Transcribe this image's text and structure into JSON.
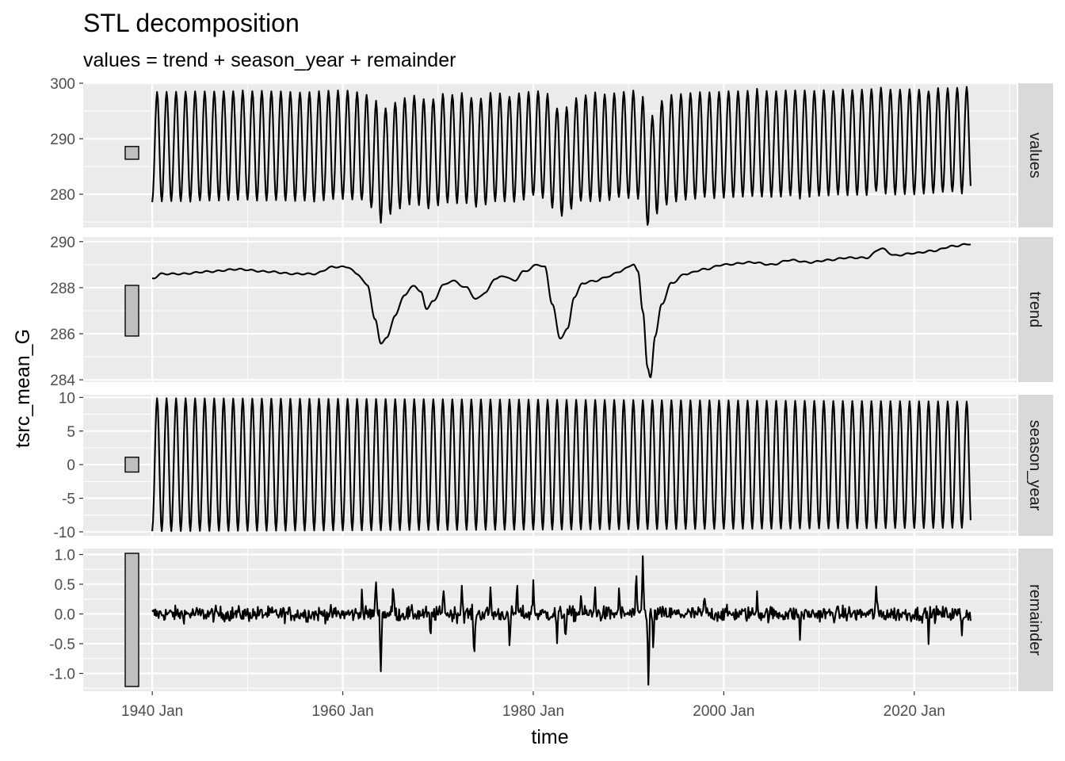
{
  "chart_data": {
    "type": "line",
    "title": "STL decomposition",
    "subtitle": "values = trend + season_year + remainder",
    "xlabel": "time",
    "ylabel": "tsrc_mean_G",
    "x_range": [
      "1940-01",
      "2025-12"
    ],
    "xlim": [
      "1932-10",
      "2030-10"
    ],
    "x_ticks": [
      "1940 Jan",
      "1960 Jan",
      "1980 Jan",
      "2000 Jan",
      "2020 Jan"
    ],
    "x_tick_years": [
      1940,
      1960,
      1980,
      2000,
      2020
    ],
    "grid": true,
    "line_color": "#000000",
    "panel_background": "#ebebeb",
    "strip_background": "#d9d9d9",
    "scale_bar_color": "#bfbfbf",
    "panels": [
      {
        "name": "values",
        "ylim": [
          274,
          300
        ],
        "y_ticks": [
          280,
          290,
          300
        ],
        "y_tick_labels": [
          "280",
          "290",
          "300"
        ],
        "scale_bar": [
          286.3,
          288.6
        ],
        "note": "values series is the sum of trend, season_year and remainder"
      },
      {
        "name": "trend",
        "ylim": [
          283.9,
          290.2
        ],
        "y_ticks": [
          284,
          286,
          288,
          290
        ],
        "y_tick_labels": [
          "284",
          "286",
          "288",
          "290"
        ],
        "scale_bar": [
          285.9,
          288.1
        ],
        "knots": [
          [
            1940.0,
            288.4
          ],
          [
            1941.0,
            288.6
          ],
          [
            1943.0,
            288.6
          ],
          [
            1946.0,
            288.7
          ],
          [
            1949.0,
            288.8
          ],
          [
            1952.0,
            288.7
          ],
          [
            1955.0,
            288.6
          ],
          [
            1957.0,
            288.6
          ],
          [
            1959.0,
            288.9
          ],
          [
            1960.5,
            288.9
          ],
          [
            1961.5,
            288.6
          ],
          [
            1962.6,
            288.1
          ],
          [
            1963.4,
            286.6
          ],
          [
            1964.0,
            285.6
          ],
          [
            1964.6,
            285.8
          ],
          [
            1965.5,
            286.8
          ],
          [
            1966.5,
            287.7
          ],
          [
            1967.5,
            288.1
          ],
          [
            1968.2,
            287.8
          ],
          [
            1968.8,
            287.1
          ],
          [
            1969.5,
            287.4
          ],
          [
            1970.5,
            288.1
          ],
          [
            1971.5,
            288.3
          ],
          [
            1973.0,
            288.0
          ],
          [
            1974.0,
            287.5
          ],
          [
            1975.0,
            287.8
          ],
          [
            1976.0,
            288.4
          ],
          [
            1977.0,
            288.5
          ],
          [
            1978.0,
            288.3
          ],
          [
            1979.0,
            288.7
          ],
          [
            1980.5,
            289.0
          ],
          [
            1981.2,
            288.9
          ],
          [
            1982.0,
            287.3
          ],
          [
            1982.8,
            285.8
          ],
          [
            1983.6,
            286.2
          ],
          [
            1984.3,
            287.6
          ],
          [
            1985.2,
            288.2
          ],
          [
            1986.5,
            288.3
          ],
          [
            1988.0,
            288.5
          ],
          [
            1989.0,
            288.7
          ],
          [
            1990.5,
            289.0
          ],
          [
            1991.0,
            288.7
          ],
          [
            1991.5,
            287.0
          ],
          [
            1992.0,
            284.5
          ],
          [
            1992.3,
            284.1
          ],
          [
            1992.8,
            285.9
          ],
          [
            1993.5,
            287.3
          ],
          [
            1994.5,
            288.2
          ],
          [
            1996.0,
            288.6
          ],
          [
            1998.0,
            288.8
          ],
          [
            2000.0,
            289.0
          ],
          [
            2003.0,
            289.1
          ],
          [
            2005.0,
            289.0
          ],
          [
            2007.0,
            289.2
          ],
          [
            2009.0,
            289.1
          ],
          [
            2011.0,
            289.2
          ],
          [
            2013.0,
            289.3
          ],
          [
            2015.0,
            289.3
          ],
          [
            2016.5,
            289.7
          ],
          [
            2018.0,
            289.4
          ],
          [
            2020.0,
            289.5
          ],
          [
            2022.0,
            289.6
          ],
          [
            2024.0,
            289.8
          ],
          [
            2025.9,
            289.9
          ]
        ]
      },
      {
        "name": "season_year",
        "ylim": [
          -10.6,
          10.4
        ],
        "y_ticks": [
          -10,
          -5,
          0,
          5,
          10
        ],
        "y_tick_labels": [
          "-10",
          "-5",
          "0",
          "5",
          "10"
        ],
        "scale_bar": [
          -1.1,
          1.1
        ],
        "amplitude_start": 9.9,
        "amplitude_end": 9.4,
        "peak_month": 7,
        "trough_month": 1
      },
      {
        "name": "remainder",
        "ylim": [
          -1.3,
          1.1
        ],
        "y_ticks": [
          -1.0,
          -0.5,
          0.0,
          0.5,
          1.0
        ],
        "y_tick_labels": [
          "-1.0",
          "-0.5",
          "0.0",
          "0.5",
          "1.0"
        ],
        "scale_bar": [
          -1.22,
          1.02
        ],
        "baseline_sd": 0.09,
        "spikes": [
          [
            1962.0,
            0.35
          ],
          [
            1963.5,
            0.6
          ],
          [
            1964.0,
            -0.9
          ],
          [
            1965.3,
            0.5
          ],
          [
            1969.2,
            -0.4
          ],
          [
            1970.6,
            0.5
          ],
          [
            1972.5,
            0.5
          ],
          [
            1973.8,
            -0.8
          ],
          [
            1975.5,
            0.4
          ],
          [
            1977.5,
            -0.6
          ],
          [
            1978.3,
            0.45
          ],
          [
            1980.0,
            0.55
          ],
          [
            1982.5,
            -0.45
          ],
          [
            1983.4,
            -0.35
          ],
          [
            1985.0,
            0.35
          ],
          [
            1986.5,
            0.45
          ],
          [
            1989.0,
            0.35
          ],
          [
            1990.8,
            0.55
          ],
          [
            1991.5,
            1.02
          ],
          [
            1992.1,
            -1.22
          ],
          [
            1992.6,
            -0.55
          ],
          [
            1998.0,
            0.3
          ],
          [
            2003.5,
            0.35
          ],
          [
            2008.0,
            -0.35
          ],
          [
            2016.0,
            0.45
          ],
          [
            2021.5,
            -0.35
          ],
          [
            2025.0,
            -0.3
          ]
        ]
      }
    ]
  }
}
